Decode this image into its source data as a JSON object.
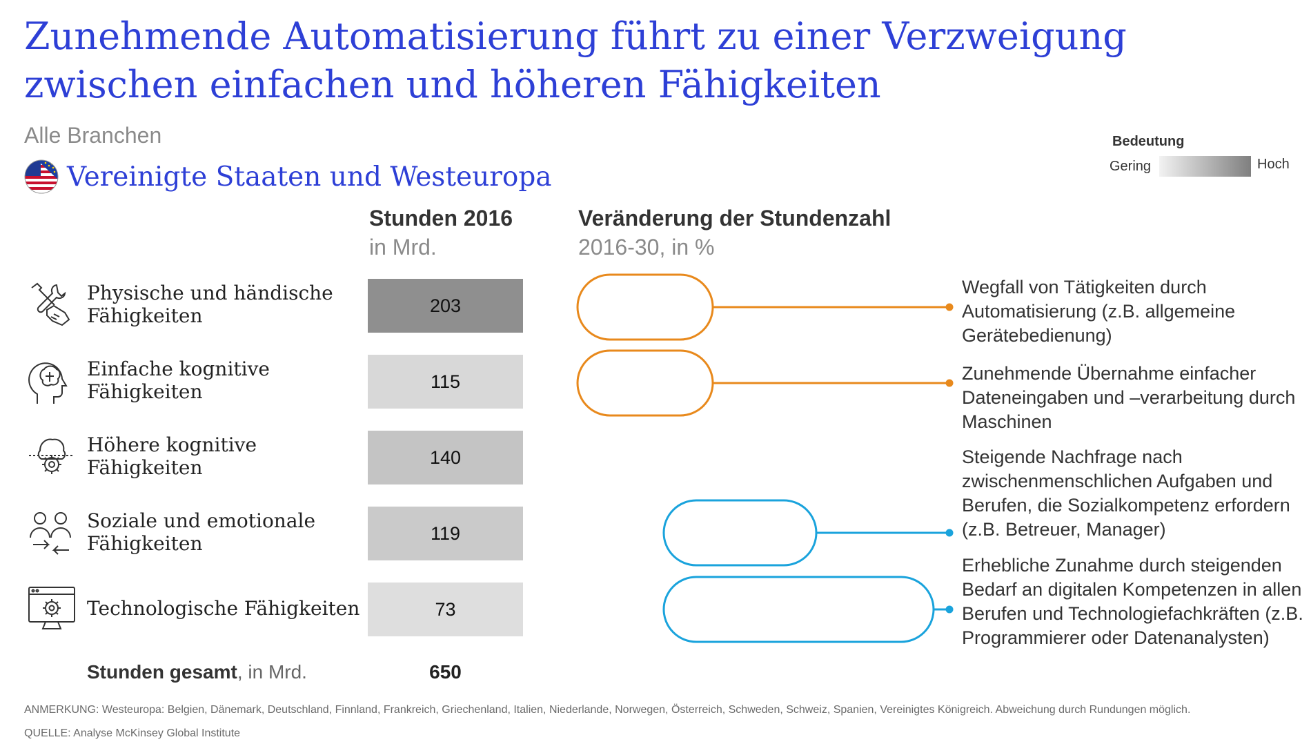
{
  "header": {
    "title": "Zunehmende Automatisierung führt zu einer Verzweigung zwischen einfachen und höheren Fähigkeiten",
    "subtitle": "Alle Branchen",
    "region": "Vereinigte Staaten und Westeuropa"
  },
  "legend": {
    "title": "Bedeutung",
    "low": "Gering",
    "high": "Hoch"
  },
  "columns": {
    "hours_title": "Stunden 2016",
    "hours_sub": "in Mrd.",
    "change_title": "Veränderung der Stundenzahl",
    "change_sub": "2016-30, in %"
  },
  "chart_data": {
    "type": "table",
    "categories": [
      "Physische und händische Fähigkeiten",
      "Einfache kognitive Fähigkeiten",
      "Höhere kognitive Fähigkeiten",
      "Soziale und emotionale Fähigkeiten",
      "Technologische Fähigkeiten"
    ],
    "hours_2016": [
      "203",
      "115",
      "140",
      "119",
      "73"
    ],
    "importance": [
      0.75,
      0.2,
      0.35,
      0.3,
      0.15
    ],
    "change_direction": [
      "decrease",
      "decrease",
      null,
      "increase",
      "increase"
    ],
    "total_label": "Stunden gesamt",
    "total_unit": ", in Mrd.",
    "total_value": "650"
  },
  "annotations": [
    "Wegfall von Tätigkeiten durch Automatisierung (z.B. allgemeine Gerätebedienung)",
    "Zunehmende Übernahme einfacher Dateneingaben und –verarbeitung durch Maschinen",
    "Steigende Nachfrage nach zwischenmenschlichen Aufgaben und Berufen, die Sozialkompetenz erfordern (z.B. Betreuer, Manager)",
    "Erhebliche Zunahme durch steigenden Bedarf an digitalen Kompetenzen in allen Berufen und Technologiefachkräften (z.B. Programmierer oder Datenanalysten)"
  ],
  "footer": {
    "note": "ANMERKUNG: Westeuropa: Belgien, Dänemark, Deutschland, Finnland, Frankreich, Griechenland, Italien, Niederlande, Norwegen, Österreich, Schweden, Schweiz, Spanien, Vereinigtes Königreich. Abweichung durch Rundungen möglich.",
    "source": "QUELLE: Analyse McKinsey Global Institute"
  },
  "colors": {
    "title": "#2d3fd6",
    "decrease": "#e8891c",
    "increase": "#1aa3dc",
    "bar_dark": "#7f7f7f",
    "bar_light": "#d9d9d9"
  },
  "icons": [
    "tools-hand-icon",
    "head-profile-icon",
    "brain-gear-icon",
    "people-exchange-icon",
    "monitor-gear-icon",
    "us-eu-flag-icon"
  ]
}
